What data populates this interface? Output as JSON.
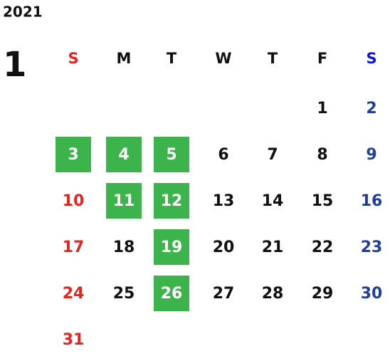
{
  "year": "2021",
  "month": "1",
  "weekdays": [
    "S",
    "M",
    "T",
    "W",
    "T",
    "F",
    "S"
  ],
  "weeks": [
    [
      null,
      null,
      null,
      null,
      null,
      1,
      2
    ],
    [
      3,
      4,
      5,
      6,
      7,
      8,
      9
    ],
    [
      10,
      11,
      12,
      13,
      14,
      15,
      16
    ],
    [
      17,
      18,
      19,
      20,
      21,
      22,
      23
    ],
    [
      24,
      25,
      26,
      27,
      28,
      29,
      30
    ],
    [
      31,
      null,
      null,
      null,
      null,
      null,
      null
    ]
  ],
  "highlighted": [
    3,
    4,
    5,
    11,
    12,
    19,
    26
  ],
  "highlight_color": "#3cb44b",
  "sunday_color": "#e8231f",
  "saturday_header_color": "#0a18e0",
  "saturday_color": "#1f3f99",
  "weekday_color": "#111111"
}
